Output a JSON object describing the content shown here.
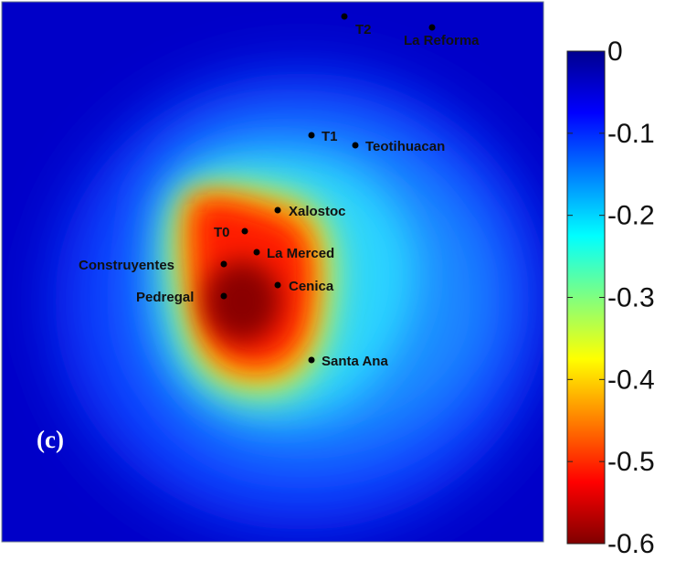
{
  "chart_data": {
    "type": "heatmap",
    "title": "",
    "xlabel": "",
    "ylabel": "",
    "panel_label": "(c)",
    "colorbar": {
      "min": -0.6,
      "max": 0,
      "ticks": [
        "0",
        "-0.1",
        "-0.2",
        "-0.3",
        "-0.4",
        "-0.5",
        "-0.6"
      ],
      "colormap": "jet (dark red = -0.6, dark blue = 0)"
    },
    "approx_field": {
      "peak_value": -0.6,
      "peak_near": "Pedregal / Construyentes",
      "background_value": 0,
      "description_words": "strongest negative values over the south-west centre, decaying outward"
    },
    "stations": [
      {
        "name": "T2"
      },
      {
        "name": "La Reforma"
      },
      {
        "name": "T1"
      },
      {
        "name": "Teotihuacan"
      },
      {
        "name": "Xalostoc"
      },
      {
        "name": "T0"
      },
      {
        "name": "La Merced"
      },
      {
        "name": "Construyentes"
      },
      {
        "name": "Cenica"
      },
      {
        "name": "Pedregal"
      },
      {
        "name": "Santa Ana"
      }
    ]
  },
  "colors": {
    "jet_darkblue": "#00008f",
    "jet_blue": "#0000ff",
    "jet_cyan": "#00ffff",
    "jet_yellow": "#ffff00",
    "jet_red": "#ff0000",
    "jet_darkred": "#800000"
  }
}
